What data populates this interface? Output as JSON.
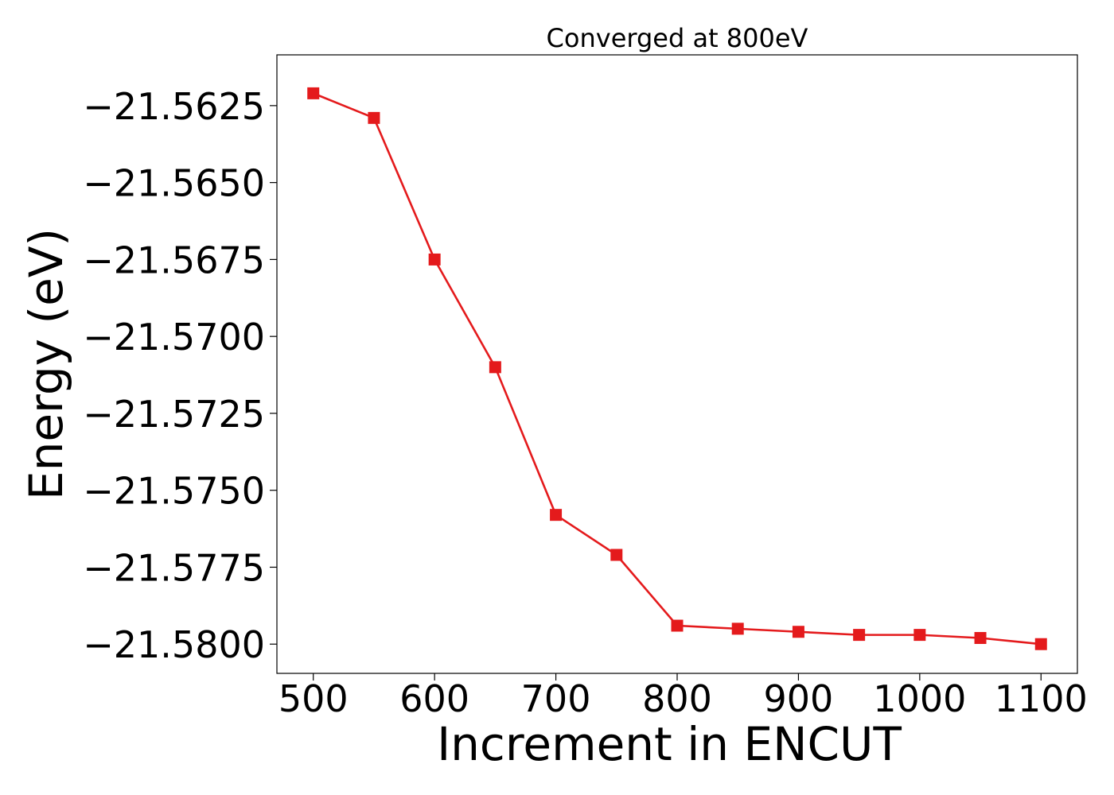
{
  "chart_data": {
    "type": "line",
    "title": "Converged at 800eV",
    "xlabel": "Increment in ENCUT",
    "ylabel": "Energy (eV)",
    "x": [
      500,
      550,
      600,
      650,
      700,
      750,
      800,
      850,
      900,
      950,
      1000,
      1050,
      1100
    ],
    "series": [
      {
        "values": [
          -21.5621,
          -21.5629,
          -21.5675,
          -21.571,
          -21.5758,
          -21.5771,
          -21.5794,
          -21.5795,
          -21.5796,
          -21.5797,
          -21.5797,
          -21.5798,
          -21.58
        ]
      }
    ],
    "xlim": [
      470,
      1130
    ],
    "ylim": [
      -21.58095,
      -21.56085
    ],
    "xticks": [
      500,
      600,
      700,
      800,
      900,
      1000,
      1100
    ],
    "xtick_labels": [
      "500",
      "600",
      "700",
      "800",
      "900",
      "1000",
      "1100"
    ],
    "yticks": [
      -21.5625,
      -21.565,
      -21.5675,
      -21.57,
      -21.5725,
      -21.575,
      -21.5775,
      -21.58
    ],
    "ytick_labels": [
      "−21.5625",
      "−21.5650",
      "−21.5675",
      "−21.5700",
      "−21.5725",
      "−21.5750",
      "−21.5775",
      "−21.5800"
    ],
    "line_color": "#e41a1c",
    "marker": "square",
    "grid": false,
    "legend": "none"
  }
}
